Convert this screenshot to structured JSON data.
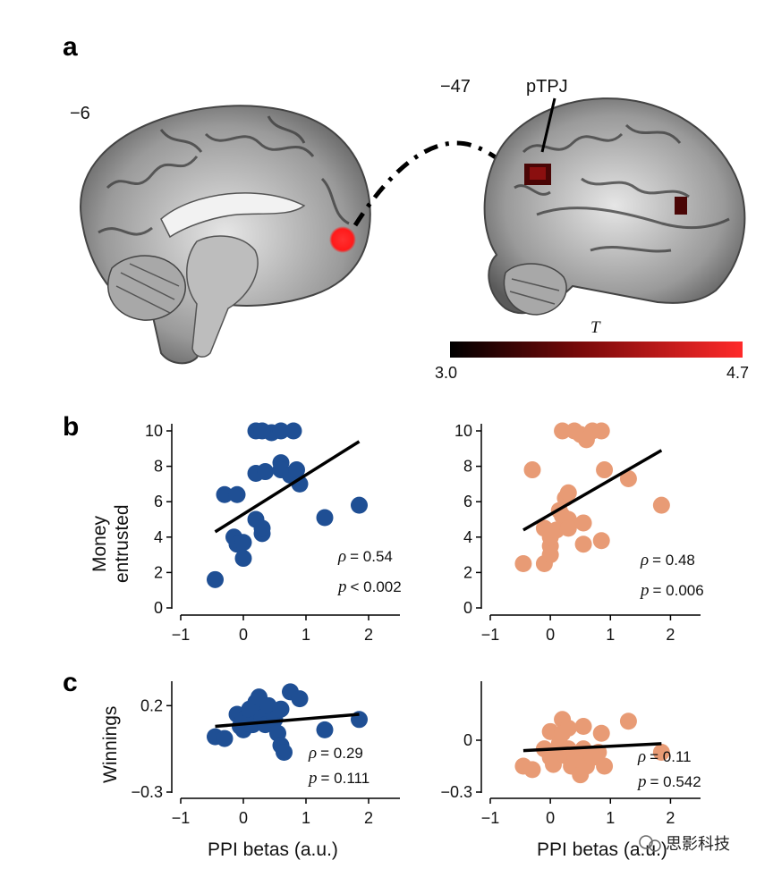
{
  "panels": {
    "a": "a",
    "b": "b",
    "c": "c"
  },
  "brain": {
    "medial_slice_label": "−6",
    "lateral_slice_label": "−47",
    "region_label": "pTPJ",
    "colorbar": {
      "title": "T",
      "min_label": "3.0",
      "max_label": "4.7",
      "color_low": "#000000",
      "color_high": "#ff2a2a"
    },
    "seed_color": "#ff1a1a",
    "cluster_color": "#5a0a0a"
  },
  "colors": {
    "blue": "#1f4f94",
    "orange": "#e89b75",
    "fit_line": "#000000"
  },
  "watermark": "思影科技",
  "chart_data": [
    {
      "type": "scatter",
      "panel": "b",
      "side": "left",
      "color": "#1f4f94",
      "ylabel": "Money entrusted",
      "ylabel_lines": [
        "Money",
        "entrusted"
      ],
      "xlabel": "",
      "xlim": [
        -1,
        2.5
      ],
      "ylim": [
        0,
        10
      ],
      "xticks": [
        -1,
        0,
        1,
        2
      ],
      "xtick_labels": [
        "−1",
        "0",
        "1",
        "2"
      ],
      "yticks": [
        0,
        2,
        4,
        6,
        8,
        10
      ],
      "ytick_labels": [
        "0",
        "2",
        "4",
        "6",
        "8",
        "10"
      ],
      "fit": {
        "x": [
          -0.45,
          1.85
        ],
        "y": [
          4.3,
          9.4
        ]
      },
      "stats": {
        "rho_symbol": "ρ",
        "rho": "= 0.54",
        "p_symbol": "p",
        "p": "< 0.002"
      },
      "points": [
        [
          -0.45,
          1.6
        ],
        [
          -0.3,
          6.4
        ],
        [
          -0.1,
          6.4
        ],
        [
          -0.15,
          4.0
        ],
        [
          -0.1,
          3.6
        ],
        [
          0.0,
          3.7
        ],
        [
          0.0,
          2.8
        ],
        [
          0.2,
          10.0
        ],
        [
          0.45,
          9.9
        ],
        [
          0.6,
          10.0
        ],
        [
          0.8,
          10.0
        ],
        [
          0.3,
          10.0
        ],
        [
          0.2,
          7.6
        ],
        [
          0.35,
          7.7
        ],
        [
          0.6,
          8.2
        ],
        [
          0.6,
          7.8
        ],
        [
          0.75,
          7.5
        ],
        [
          0.85,
          7.8
        ],
        [
          0.9,
          7.0
        ],
        [
          0.2,
          5.0
        ],
        [
          0.3,
          4.2
        ],
        [
          0.3,
          4.5
        ],
        [
          1.3,
          5.1
        ],
        [
          1.85,
          5.8
        ]
      ]
    },
    {
      "type": "scatter",
      "panel": "b",
      "side": "right",
      "color": "#e89b75",
      "ylabel": "",
      "xlabel": "",
      "xlim": [
        -1,
        2.5
      ],
      "ylim": [
        0,
        10
      ],
      "xticks": [
        -1,
        0,
        1,
        2
      ],
      "xtick_labels": [
        "−1",
        "0",
        "1",
        "2"
      ],
      "yticks": [
        0,
        2,
        4,
        6,
        8,
        10
      ],
      "ytick_labels": [
        "0",
        "2",
        "4",
        "6",
        "8",
        "10"
      ],
      "fit": {
        "x": [
          -0.45,
          1.85
        ],
        "y": [
          4.4,
          8.9
        ]
      },
      "stats": {
        "rho_symbol": "ρ",
        "rho": "= 0.48",
        "p_symbol": "p",
        "p": "= 0.006"
      },
      "points": [
        [
          -0.45,
          2.5
        ],
        [
          -0.3,
          7.8
        ],
        [
          -0.1,
          4.5
        ],
        [
          -0.1,
          2.5
        ],
        [
          0.0,
          3.0
        ],
        [
          0.0,
          3.5
        ],
        [
          0.0,
          4.0
        ],
        [
          0.1,
          4.4
        ],
        [
          0.15,
          5.5
        ],
        [
          0.2,
          5.2
        ],
        [
          0.25,
          6.2
        ],
        [
          0.3,
          6.5
        ],
        [
          0.3,
          5.0
        ],
        [
          0.3,
          4.5
        ],
        [
          0.2,
          10.0
        ],
        [
          0.4,
          10.0
        ],
        [
          0.5,
          9.8
        ],
        [
          0.7,
          10.0
        ],
        [
          0.85,
          10.0
        ],
        [
          0.6,
          9.5
        ],
        [
          0.55,
          3.6
        ],
        [
          0.55,
          4.8
        ],
        [
          0.85,
          3.8
        ],
        [
          0.9,
          7.8
        ],
        [
          1.3,
          7.3
        ],
        [
          1.85,
          5.8
        ]
      ]
    },
    {
      "type": "scatter",
      "panel": "c",
      "side": "left",
      "color": "#1f4f94",
      "ylabel": "Winnings",
      "xlabel": "PPI betas (a.u.)",
      "xlim": [
        -1,
        2.5
      ],
      "ylim": [
        -0.3,
        0.3
      ],
      "xticks": [
        -1,
        0,
        1,
        2
      ],
      "xtick_labels": [
        "−1",
        "0",
        "1",
        "2"
      ],
      "yticks": [
        -0.3,
        0.2
      ],
      "ytick_labels": [
        "−0.3",
        "0.2"
      ],
      "fit": {
        "x": [
          -0.45,
          1.85
        ],
        "y": [
          0.08,
          0.15
        ]
      },
      "stats": {
        "rho_symbol": "ρ",
        "rho": "= 0.29",
        "p_symbol": "p",
        "p": "= 0.111"
      },
      "points": [
        [
          -0.45,
          0.02
        ],
        [
          -0.3,
          0.01
        ],
        [
          -0.1,
          0.15
        ],
        [
          -0.05,
          0.08
        ],
        [
          0.0,
          0.06
        ],
        [
          0.0,
          0.12
        ],
        [
          0.05,
          0.1
        ],
        [
          0.1,
          0.18
        ],
        [
          0.15,
          0.09
        ],
        [
          0.2,
          0.22
        ],
        [
          0.25,
          0.25
        ],
        [
          0.25,
          0.16
        ],
        [
          0.3,
          0.13
        ],
        [
          0.35,
          0.09
        ],
        [
          0.4,
          0.2
        ],
        [
          0.5,
          0.12
        ],
        [
          0.55,
          0.04
        ],
        [
          0.6,
          0.18
        ],
        [
          0.6,
          -0.03
        ],
        [
          0.65,
          -0.07
        ],
        [
          0.75,
          0.28
        ],
        [
          0.9,
          0.24
        ],
        [
          1.3,
          0.06
        ],
        [
          1.85,
          0.12
        ]
      ]
    },
    {
      "type": "scatter",
      "panel": "c",
      "side": "right",
      "color": "#e89b75",
      "ylabel": "",
      "xlabel": "PPI betas (a.u.)",
      "xlim": [
        -1,
        2.5
      ],
      "ylim": [
        -0.3,
        0.3
      ],
      "xticks": [
        -1,
        0,
        1,
        2
      ],
      "xtick_labels": [
        "−1",
        "0",
        "1",
        "2"
      ],
      "yticks": [
        -0.3,
        0
      ],
      "ytick_labels": [
        "−0.3",
        "0"
      ],
      "fit": {
        "x": [
          -0.45,
          1.85
        ],
        "y": [
          -0.06,
          -0.02
        ]
      },
      "stats": {
        "rho_symbol": "ρ",
        "rho": "= 0.11",
        "p_symbol": "p",
        "p": "= 0.542"
      },
      "points": [
        [
          -0.45,
          -0.15
        ],
        [
          -0.3,
          -0.17
        ],
        [
          -0.1,
          -0.05
        ],
        [
          0.0,
          -0.1
        ],
        [
          0.0,
          0.05
        ],
        [
          0.05,
          -0.14
        ],
        [
          0.1,
          -0.08
        ],
        [
          0.15,
          -0.02
        ],
        [
          0.2,
          0.12
        ],
        [
          0.2,
          0.04
        ],
        [
          0.25,
          -0.09
        ],
        [
          0.3,
          -0.05
        ],
        [
          0.3,
          0.07
        ],
        [
          0.35,
          -0.15
        ],
        [
          0.4,
          -0.08
        ],
        [
          0.45,
          -0.12
        ],
        [
          0.5,
          -0.2
        ],
        [
          0.55,
          0.08
        ],
        [
          0.55,
          -0.05
        ],
        [
          0.6,
          -0.15
        ],
        [
          0.7,
          -0.1
        ],
        [
          0.8,
          -0.07
        ],
        [
          0.85,
          0.04
        ],
        [
          0.9,
          -0.15
        ],
        [
          1.3,
          0.11
        ],
        [
          1.85,
          -0.07
        ]
      ]
    }
  ]
}
